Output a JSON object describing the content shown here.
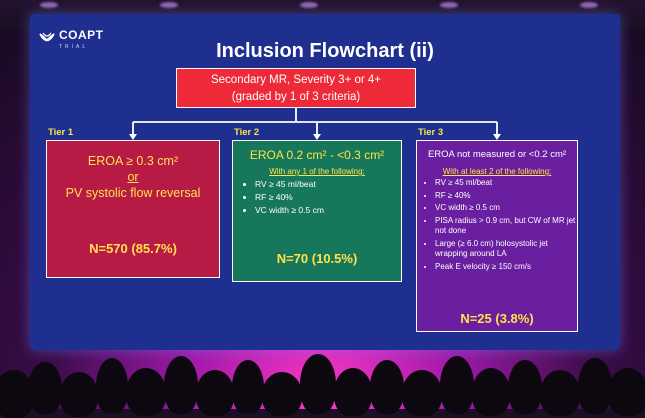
{
  "logo": {
    "name": "COAPT",
    "sub": "TRIAL"
  },
  "title": "Inclusion Flowchart (ii)",
  "top_box": {
    "line1": "Secondary MR, Severity 3+ or 4+",
    "line2": "(graded by 1 of 3 criteria)"
  },
  "tiers": [
    {
      "label": "Tier 1",
      "head1": "EROA ≥ 0.3 cm²",
      "or": "or",
      "head2": "PV systolic flow reversal",
      "count": "N=570 (85.7%)"
    },
    {
      "label": "Tier 2",
      "head": "EROA 0.2 cm² - <0.3 cm²",
      "sub": "With any 1 of the following:",
      "criteria": [
        "RV ≥ 45 ml/beat",
        "RF ≥ 40%",
        "VC width ≥ 0.5 cm"
      ],
      "count": "N=70 (10.5%)"
    },
    {
      "label": "Tier 3",
      "head": "EROA not measured or <0.2 cm²",
      "sub": "With at least 2 of the following:",
      "criteria": [
        "RV ≥ 45 ml/beat",
        "RF ≥ 40%",
        "VC width ≥ 0.5 cm",
        "PISA radius > 0.9 cm, but CW of MR jet not done",
        "Large (≥ 6.0 cm) holosystolic jet wrapping around LA",
        "Peak E velocity ≥ 150 cm/s"
      ],
      "count": "N=25 (3.8%)"
    }
  ],
  "colors": {
    "screen": "#1f2f8f",
    "top_box": "#ef2a38",
    "tier1": "#b81a46",
    "tier2": "#17775a",
    "tier3": "#6a1ea0",
    "accent": "#ffe24d"
  }
}
